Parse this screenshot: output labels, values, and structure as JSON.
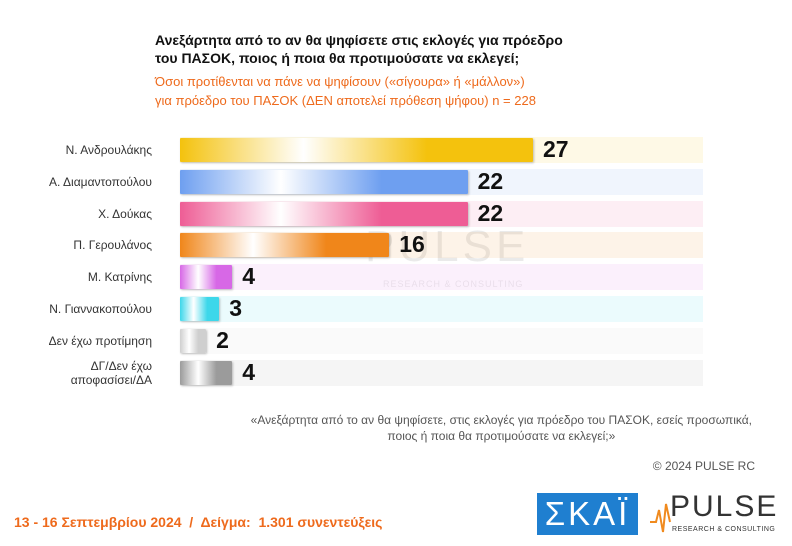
{
  "chart_data": {
    "type": "bar",
    "title": "Ανεξάρτητα από το αν θα ψηφίσετε στις εκλογές για πρόεδρο\nτου ΠΑΣΟΚ, ποιος ή ποια θα προτιμούσατε να εκλεγεί;",
    "subtitle": "Όσοι προτίθενται να πάνε να ψηφίσουν («σίγουρα» ή «μάλλον»)\nγια πρόεδρο του ΠΑΣΟΚ   (ΔΕΝ αποτελεί πρόθεση ψήφου)   n = 228",
    "categories": [
      "Ν. Ανδρουλάκης",
      "Α. Διαμαντοπούλου",
      "Χ. Δούκας",
      "Π. Γερουλάνος",
      "Μ. Κατρίνης",
      "Ν. Γιαννακοπούλου",
      "Δεν έχω προτίμηση",
      "ΔΓ/Δεν έχω\nαποφασίσει/ΔΑ"
    ],
    "values": [
      27,
      22,
      22,
      16,
      4,
      3,
      2,
      4
    ],
    "colors": [
      "#f4c20d",
      "#6e9ff0",
      "#ee5d95",
      "#f0861a",
      "#d768e6",
      "#3dd7ea",
      "#cfcfcf",
      "#9b9b9b"
    ],
    "xlim": [
      0,
      40
    ]
  },
  "note": "«Ανεξάρτητα από το αν θα ψηφίσετε, στις εκλογές για πρόεδρο του ΠΑΣΟΚ, εσείς προσωπικά,\nποιος ή ποια θα προτιμούσατε να εκλεγεί;»",
  "copyright": "© 2024 PULSE RC",
  "footer": "13 - 16 Σεπτεμβρίου 2024  /  Δείγμα:  1.301 συνεντεύξεις",
  "logos": {
    "skai": "ΣΚΑΪ",
    "pulse": "PULSE",
    "pulse_sub": "RESEARCH & CONSULTING"
  }
}
